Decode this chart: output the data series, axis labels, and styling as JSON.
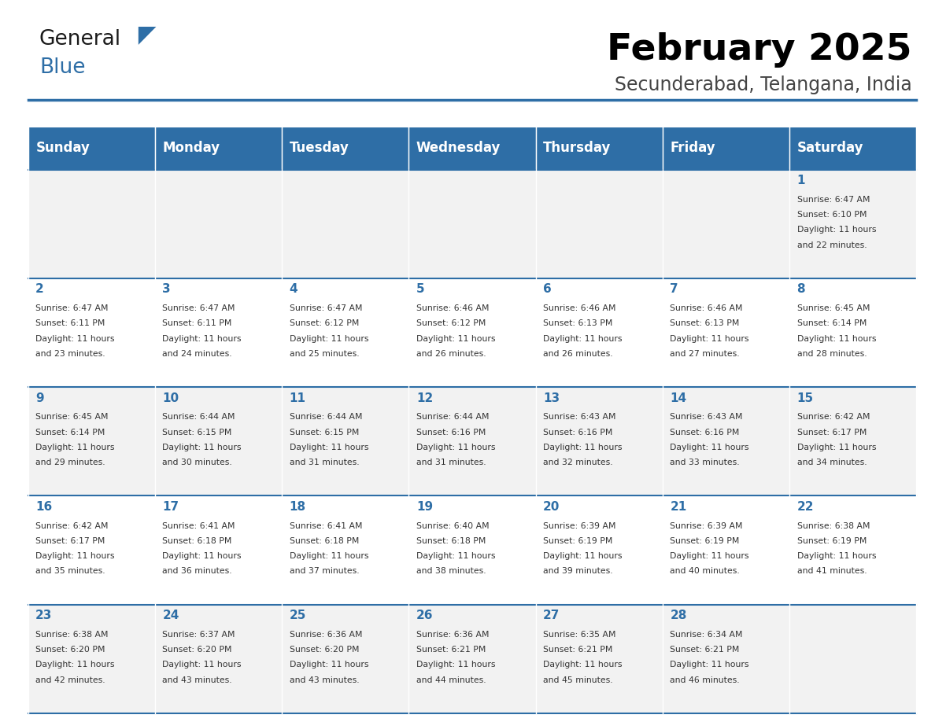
{
  "title": "February 2025",
  "subtitle": "Secunderabad, Telangana, India",
  "header_bg": "#2E6EA6",
  "header_text_color": "#FFFFFF",
  "cell_bg_light": "#F2F2F2",
  "cell_bg_white": "#FFFFFF",
  "day_number_color": "#2E6EA6",
  "text_color": "#333333",
  "line_color": "#2E6EA6",
  "days_of_week": [
    "Sunday",
    "Monday",
    "Tuesday",
    "Wednesday",
    "Thursday",
    "Friday",
    "Saturday"
  ],
  "calendar_data": [
    [
      null,
      null,
      null,
      null,
      null,
      null,
      {
        "day": 1,
        "sunrise": "6:47 AM",
        "sunset": "6:10 PM",
        "daylight": "11 hours\nand 22 minutes."
      }
    ],
    [
      {
        "day": 2,
        "sunrise": "6:47 AM",
        "sunset": "6:11 PM",
        "daylight": "11 hours\nand 23 minutes."
      },
      {
        "day": 3,
        "sunrise": "6:47 AM",
        "sunset": "6:11 PM",
        "daylight": "11 hours\nand 24 minutes."
      },
      {
        "day": 4,
        "sunrise": "6:47 AM",
        "sunset": "6:12 PM",
        "daylight": "11 hours\nand 25 minutes."
      },
      {
        "day": 5,
        "sunrise": "6:46 AM",
        "sunset": "6:12 PM",
        "daylight": "11 hours\nand 26 minutes."
      },
      {
        "day": 6,
        "sunrise": "6:46 AM",
        "sunset": "6:13 PM",
        "daylight": "11 hours\nand 26 minutes."
      },
      {
        "day": 7,
        "sunrise": "6:46 AM",
        "sunset": "6:13 PM",
        "daylight": "11 hours\nand 27 minutes."
      },
      {
        "day": 8,
        "sunrise": "6:45 AM",
        "sunset": "6:14 PM",
        "daylight": "11 hours\nand 28 minutes."
      }
    ],
    [
      {
        "day": 9,
        "sunrise": "6:45 AM",
        "sunset": "6:14 PM",
        "daylight": "11 hours\nand 29 minutes."
      },
      {
        "day": 10,
        "sunrise": "6:44 AM",
        "sunset": "6:15 PM",
        "daylight": "11 hours\nand 30 minutes."
      },
      {
        "day": 11,
        "sunrise": "6:44 AM",
        "sunset": "6:15 PM",
        "daylight": "11 hours\nand 31 minutes."
      },
      {
        "day": 12,
        "sunrise": "6:44 AM",
        "sunset": "6:16 PM",
        "daylight": "11 hours\nand 31 minutes."
      },
      {
        "day": 13,
        "sunrise": "6:43 AM",
        "sunset": "6:16 PM",
        "daylight": "11 hours\nand 32 minutes."
      },
      {
        "day": 14,
        "sunrise": "6:43 AM",
        "sunset": "6:16 PM",
        "daylight": "11 hours\nand 33 minutes."
      },
      {
        "day": 15,
        "sunrise": "6:42 AM",
        "sunset": "6:17 PM",
        "daylight": "11 hours\nand 34 minutes."
      }
    ],
    [
      {
        "day": 16,
        "sunrise": "6:42 AM",
        "sunset": "6:17 PM",
        "daylight": "11 hours\nand 35 minutes."
      },
      {
        "day": 17,
        "sunrise": "6:41 AM",
        "sunset": "6:18 PM",
        "daylight": "11 hours\nand 36 minutes."
      },
      {
        "day": 18,
        "sunrise": "6:41 AM",
        "sunset": "6:18 PM",
        "daylight": "11 hours\nand 37 minutes."
      },
      {
        "day": 19,
        "sunrise": "6:40 AM",
        "sunset": "6:18 PM",
        "daylight": "11 hours\nand 38 minutes."
      },
      {
        "day": 20,
        "sunrise": "6:39 AM",
        "sunset": "6:19 PM",
        "daylight": "11 hours\nand 39 minutes."
      },
      {
        "day": 21,
        "sunrise": "6:39 AM",
        "sunset": "6:19 PM",
        "daylight": "11 hours\nand 40 minutes."
      },
      {
        "day": 22,
        "sunrise": "6:38 AM",
        "sunset": "6:19 PM",
        "daylight": "11 hours\nand 41 minutes."
      }
    ],
    [
      {
        "day": 23,
        "sunrise": "6:38 AM",
        "sunset": "6:20 PM",
        "daylight": "11 hours\nand 42 minutes."
      },
      {
        "day": 24,
        "sunrise": "6:37 AM",
        "sunset": "6:20 PM",
        "daylight": "11 hours\nand 43 minutes."
      },
      {
        "day": 25,
        "sunrise": "6:36 AM",
        "sunset": "6:20 PM",
        "daylight": "11 hours\nand 43 minutes."
      },
      {
        "day": 26,
        "sunrise": "6:36 AM",
        "sunset": "6:21 PM",
        "daylight": "11 hours\nand 44 minutes."
      },
      {
        "day": 27,
        "sunrise": "6:35 AM",
        "sunset": "6:21 PM",
        "daylight": "11 hours\nand 45 minutes."
      },
      {
        "day": 28,
        "sunrise": "6:34 AM",
        "sunset": "6:21 PM",
        "daylight": "11 hours\nand 46 minutes."
      },
      null
    ]
  ]
}
